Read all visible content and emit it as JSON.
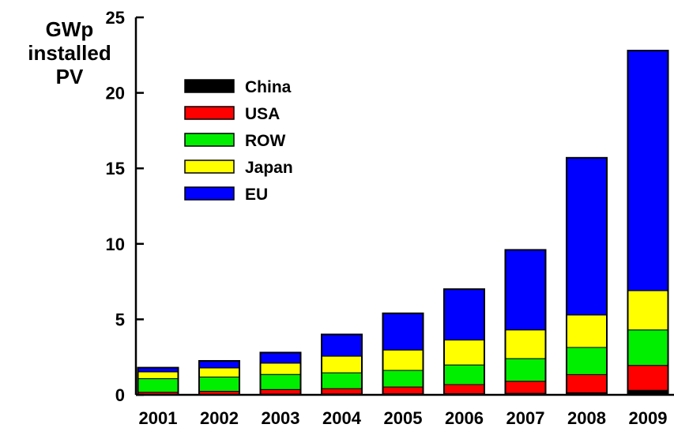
{
  "chart_data": {
    "type": "bar",
    "stacked": true,
    "ylabel_lines": [
      "GWp",
      "installed",
      "PV"
    ],
    "categories": [
      "2001",
      "2002",
      "2003",
      "2004",
      "2005",
      "2006",
      "2007",
      "2008",
      "2009"
    ],
    "ylim": [
      0,
      25
    ],
    "yticks": [
      "0",
      "5",
      "10",
      "15",
      "20",
      "25"
    ],
    "grid": false,
    "legend_position": "top-left",
    "series": [
      {
        "name": "China",
        "color": "#000000",
        "values": [
          0.02,
          0.03,
          0.05,
          0.06,
          0.07,
          0.08,
          0.1,
          0.14,
          0.3
        ]
      },
      {
        "name": "USA",
        "color": "#ff0000",
        "values": [
          0.15,
          0.2,
          0.3,
          0.35,
          0.45,
          0.6,
          0.8,
          1.2,
          1.65
        ]
      },
      {
        "name": "ROW",
        "color": "#00ee00",
        "values": [
          0.9,
          0.95,
          1.0,
          1.05,
          1.1,
          1.3,
          1.5,
          1.8,
          2.35
        ]
      },
      {
        "name": "Japan",
        "color": "#ffff00",
        "values": [
          0.45,
          0.6,
          0.75,
          1.1,
          1.35,
          1.65,
          1.9,
          2.15,
          2.6
        ]
      },
      {
        "name": "EU",
        "color": "#0000ff",
        "values": [
          0.28,
          0.47,
          0.7,
          1.44,
          2.43,
          3.37,
          5.3,
          10.41,
          15.9
        ]
      }
    ],
    "legend_order": [
      "China",
      "USA",
      "ROW",
      "Japan",
      "EU"
    ]
  }
}
